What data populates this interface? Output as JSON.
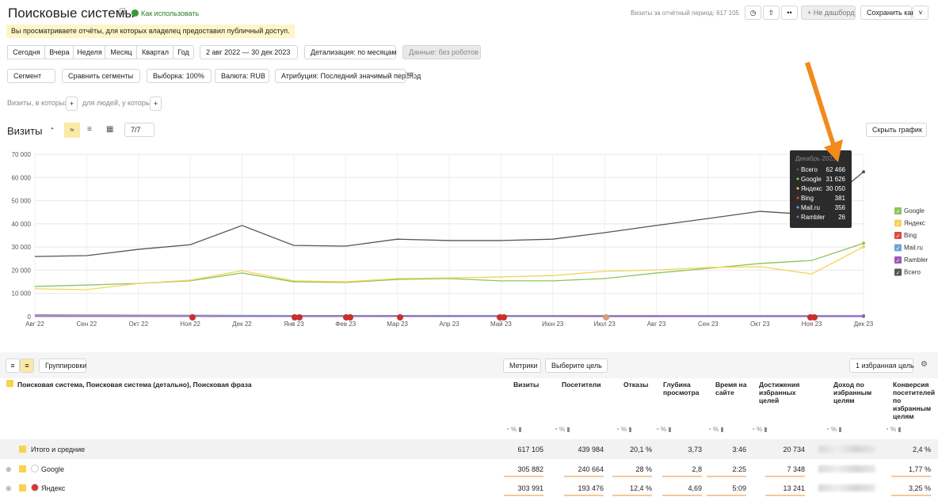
{
  "header": {
    "title": "Поисковые системы",
    "help_link": "Как использовать",
    "visits_total": "Визиты за отчётный период: 617 105",
    "dashboard_button": "+ Не дашборд",
    "save_button": "Сохранить как"
  },
  "notice": "Вы просматриваете отчёты, для которых владелец предоставил публичный доступ.",
  "period_buttons": [
    "Сегодня",
    "Вчера",
    "Неделя",
    "Месяц",
    "Квартал",
    "Год"
  ],
  "date_range": "2 авг 2022 — 30 дек 2023",
  "detail": "Детализация: по месяцам",
  "data_filter": "Данные: без роботов",
  "filters": [
    "Сегмент",
    "Сравнить сегменты",
    "Выборка: 100%",
    "Валюта: RUB",
    "Атрибуция: Последний значимый переход"
  ],
  "attribution_badge": "кд",
  "segment_hints": [
    "Визиты, в которых",
    "для людей, у которых"
  ],
  "chart_header": {
    "title": "Визиты",
    "series_count": "7/7",
    "hide_button": "Скрыть график"
  },
  "chart_data": {
    "type": "line",
    "categories": [
      "Авг 22",
      "Сен 22",
      "Окт 22",
      "Ноя 22",
      "Дек 22",
      "Янв 23",
      "Фев 23",
      "Мар 23",
      "Апр 23",
      "Май 23",
      "Июн 23",
      "Июл 23",
      "Авг 23",
      "Сен 23",
      "Окт 23",
      "Ноя 23",
      "Дек 23"
    ],
    "series": [
      {
        "name": "Google",
        "color": "#8dc55a",
        "values": [
          13000,
          13600,
          14300,
          15400,
          18800,
          15000,
          14700,
          16000,
          16400,
          15400,
          15400,
          16400,
          18800,
          20800,
          22900,
          24200,
          31626
        ]
      },
      {
        "name": "Яндекс",
        "color": "#f5d35b",
        "values": [
          12000,
          11600,
          14300,
          15700,
          19800,
          15400,
          15000,
          16400,
          16700,
          17100,
          17700,
          19500,
          20100,
          21200,
          21500,
          18400,
          30050
        ]
      },
      {
        "name": "Bing",
        "color": "#e0493b",
        "values": [
          700,
          650,
          600,
          550,
          500,
          480,
          460,
          450,
          440,
          430,
          420,
          410,
          400,
          395,
          390,
          385,
          381
        ]
      },
      {
        "name": "Mail.ru",
        "color": "#6ea4dd",
        "values": [
          500,
          480,
          470,
          460,
          450,
          440,
          430,
          420,
          410,
          400,
          395,
          390,
          380,
          375,
          370,
          360,
          356
        ]
      },
      {
        "name": "Rambler",
        "color": "#9b59b6",
        "values": [
          40,
          38,
          37,
          36,
          35,
          34,
          33,
          32,
          31,
          30,
          30,
          29,
          28,
          28,
          27,
          27,
          26
        ]
      },
      {
        "name": "Всего",
        "color": "#555555",
        "values": [
          25900,
          26300,
          29000,
          31000,
          39300,
          30700,
          30400,
          33400,
          32800,
          32800,
          33400,
          36200,
          39300,
          42300,
          45400,
          44000,
          62466
        ]
      }
    ],
    "ylim": [
      0,
      70000
    ],
    "yticks": [
      0,
      {
        "value": 10000,
        "label": "10 000"
      },
      {
        "value": 20000,
        "label": "20 000"
      },
      {
        "value": 30000,
        "label": "30 000"
      },
      {
        "value": 40000,
        "label": "40 000"
      },
      {
        "value": 50000,
        "label": "50 000"
      },
      {
        "value": 60000,
        "label": "60 000"
      },
      {
        "value": 70000,
        "label": "70 000"
      }
    ],
    "grid": true,
    "legend": "right",
    "tooltip": {
      "title": "Декабрь 2023",
      "rows": [
        {
          "name": "Всего",
          "value": "62 466"
        },
        {
          "name": "Google",
          "value": "31 626"
        },
        {
          "name": "Яндекс",
          "value": "30 050"
        },
        {
          "name": "Bing",
          "value": "381"
        },
        {
          "name": "Mail.ru",
          "value": "356"
        },
        {
          "name": "Rambler",
          "value": "26"
        }
      ]
    }
  },
  "table": {
    "toolbar": {
      "groupings": "Группировки",
      "metrics": "Метрики",
      "goal_select": "Выберите цель",
      "favorite_goals": "1 избранная цель"
    },
    "dimension_header": "Поисковая система, Поисковая система (детально), Поисковая фраза",
    "columns": [
      "Визиты",
      "Посетители",
      "Отказы",
      "Глубина просмотра",
      "Время на сайте",
      "Достижения избранных целей",
      "Доход по избранным целям",
      "Конверсия посетителей по избранным целям"
    ],
    "rows": [
      {
        "label": "Итого и средние",
        "cells": [
          "617 105",
          "439 984",
          "20,1 %",
          "3,73",
          "3:46",
          "20 734",
          null,
          "2,4 %"
        ]
      },
      {
        "label": "Google",
        "cells": [
          "305 882",
          "240 664",
          "28 %",
          "2,8",
          "2:25",
          "7 348",
          null,
          "1,77 %"
        ]
      },
      {
        "label": "Яндекс",
        "cells": [
          "303 991",
          "193 476",
          "12,4 %",
          "4,69",
          "5:09",
          "13 241",
          null,
          "3,25 %"
        ]
      }
    ]
  }
}
